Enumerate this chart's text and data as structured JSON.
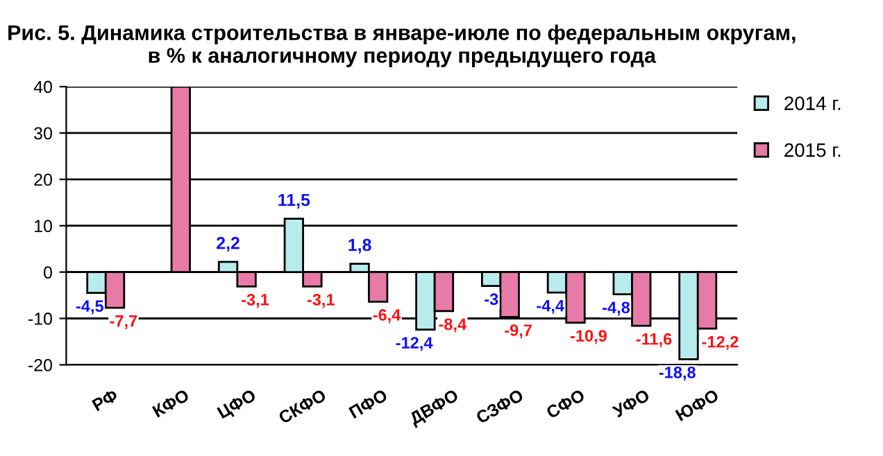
{
  "chart_data": {
    "type": "bar",
    "title": "Рис. 5. Динамика строительства в январе-июле по федеральным округам, в % к аналогичному периоду предыдущего года",
    "categories": [
      "РФ",
      "КФО",
      "ЦФО",
      "СКФО",
      "ПФО",
      "ДВФО",
      "СЗФО",
      "СФО",
      "УФО",
      "ЮФО"
    ],
    "series": [
      {
        "name": "2014 г.",
        "color": "#b8ecec",
        "values": [
          -4.5,
          null,
          2.2,
          11.5,
          1.8,
          -12.4,
          -3,
          -4.4,
          -4.8,
          -18.8
        ],
        "value_labels": [
          "-4,5",
          null,
          "2,2",
          "11,5",
          "1,8",
          "-12,4",
          "-3",
          "-4,4",
          "-4,8",
          "-18,8"
        ]
      },
      {
        "name": "2015 г.",
        "color": "#e87aa8",
        "values": [
          -7.7,
          40,
          -3.1,
          -3.1,
          -6.4,
          -8.4,
          -9.7,
          -10.9,
          -11.6,
          -12.2
        ],
        "value_labels": [
          "-7,7",
          null,
          "-3,1",
          "-3,1",
          "-6,4",
          "-8,4",
          "-9,7",
          "-10,9",
          "-11,6",
          "-12,2"
        ]
      }
    ],
    "ylim": [
      -20,
      40
    ],
    "yticks": [
      -20,
      -10,
      0,
      10,
      20,
      30,
      40
    ],
    "grid": "y",
    "legend": "right"
  }
}
